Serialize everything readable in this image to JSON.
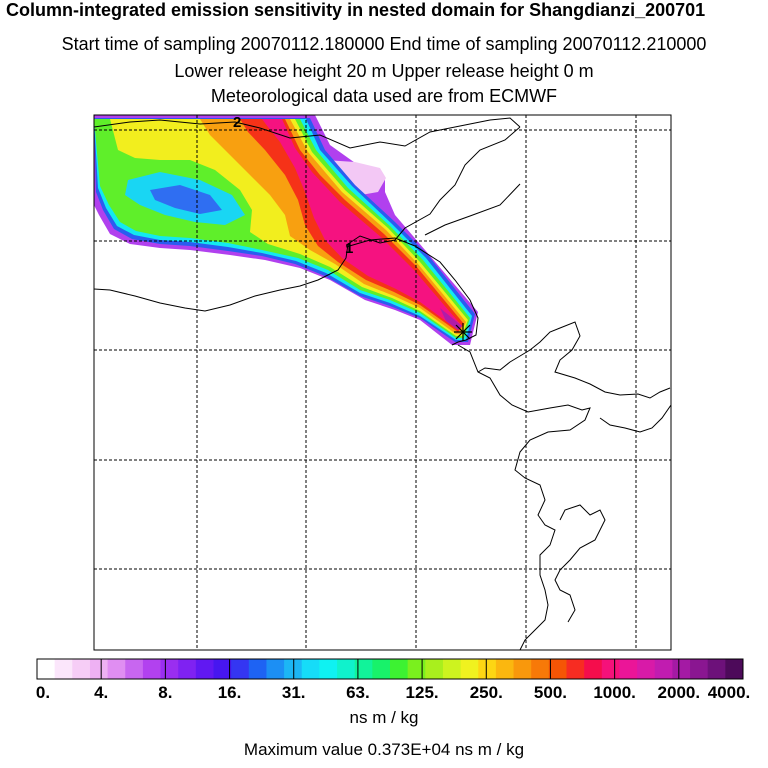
{
  "header": {
    "title": "Column-integrated emission sensitivity in nested domain for Shangdianzi_200701",
    "sampling": "Start time of sampling 20070112.180000     End time of sampling 20070112.210000",
    "release": "Lower release height   20 m          Upper release height    0 m",
    "met": "Meteorological data used are from ECMWF"
  },
  "map": {
    "contour_labels": [
      "2",
      "1"
    ],
    "marker": "release-site"
  },
  "colorbar": {
    "tick_labels": [
      "0.",
      "4.",
      "8.",
      "16.",
      "31.",
      "63.",
      "125.",
      "250.",
      "500.",
      "1000.",
      "2000.",
      "4000."
    ],
    "colors": [
      "#ffffff",
      "#fbe6fb",
      "#f6cdf6",
      "#eeb1f3",
      "#e08ef2",
      "#c866f0",
      "#b241ef",
      "#9a2ef0",
      "#7f22f2",
      "#6118f2",
      "#4716f0",
      "#3436f2",
      "#1e63f3",
      "#1c8ff4",
      "#1cb6f5",
      "#16dcf8",
      "#0ff2f2",
      "#10f2cc",
      "#11f39a",
      "#18f26a",
      "#3df232",
      "#7af01e",
      "#a9ef1d",
      "#cdf31f",
      "#f0f21f",
      "#fdd613",
      "#fbb70f",
      "#f9980c",
      "#f77908",
      "#f55505",
      "#f72c22",
      "#f50d4c",
      "#f5117a",
      "#eb1598",
      "#d81aa8",
      "#c11cb0",
      "#a41aa4",
      "#8a1691",
      "#6d117a",
      "#4d0a5a"
    ],
    "units": "ns m / kg",
    "max_value": "Maximum value  0.373E+04 ns m / kg"
  }
}
